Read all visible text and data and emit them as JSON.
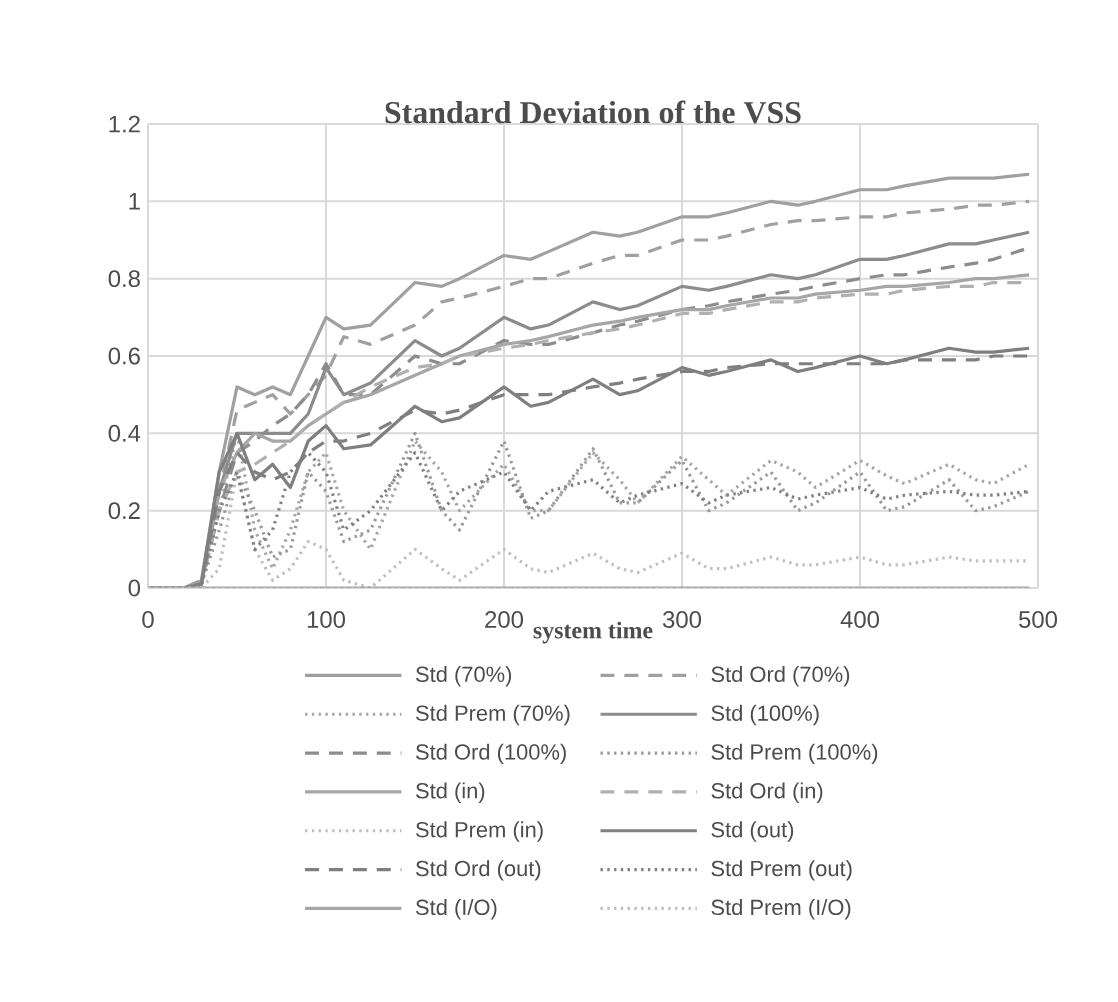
{
  "chart_data": {
    "type": "line",
    "title": "Standard Deviation of the VSS",
    "xlabel": "system time",
    "x": [
      0,
      20,
      30,
      40,
      50,
      60,
      70,
      80,
      90,
      100,
      110,
      125,
      150,
      165,
      175,
      200,
      215,
      225,
      250,
      265,
      275,
      300,
      315,
      325,
      350,
      365,
      375,
      400,
      415,
      425,
      450,
      465,
      475,
      495
    ],
    "xlim": [
      0,
      500
    ],
    "xticks": [
      0,
      100,
      200,
      300,
      400,
      500
    ],
    "ylim": [
      0,
      1.2
    ],
    "yticks": [
      0,
      0.2,
      0.4,
      0.6,
      0.8,
      1,
      1.2
    ],
    "grid": true,
    "legend": "bottom",
    "series": [
      {
        "name": "Std (70%)",
        "color": "#a0a0a0",
        "line_style": "solid",
        "values": [
          0,
          0,
          0.02,
          0.3,
          0.52,
          0.5,
          0.52,
          0.5,
          0.6,
          0.7,
          0.67,
          0.68,
          0.79,
          0.78,
          0.8,
          0.86,
          0.85,
          0.87,
          0.92,
          0.91,
          0.92,
          0.96,
          0.96,
          0.97,
          1.0,
          0.99,
          1.0,
          1.03,
          1.03,
          1.04,
          1.06,
          1.06,
          1.06,
          1.07
        ]
      },
      {
        "name": "Std Ord (70%)",
        "color": "#a0a0a0",
        "line_style": "dashed",
        "values": [
          0,
          0,
          0.01,
          0.25,
          0.46,
          0.48,
          0.5,
          0.45,
          0.5,
          0.55,
          0.65,
          0.63,
          0.68,
          0.74,
          0.75,
          0.78,
          0.8,
          0.8,
          0.84,
          0.86,
          0.86,
          0.9,
          0.9,
          0.91,
          0.94,
          0.95,
          0.95,
          0.96,
          0.96,
          0.97,
          0.98,
          0.99,
          0.99,
          1.0
        ]
      },
      {
        "name": "Std Prem (70%)",
        "color": "#a6a6a6",
        "line_style": "dotted",
        "values": [
          0,
          0,
          0.01,
          0.2,
          0.4,
          0.15,
          0.05,
          0.15,
          0.3,
          0.35,
          0.2,
          0.1,
          0.38,
          0.3,
          0.2,
          0.32,
          0.2,
          0.2,
          0.35,
          0.28,
          0.22,
          0.34,
          0.28,
          0.24,
          0.33,
          0.3,
          0.26,
          0.33,
          0.29,
          0.27,
          0.32,
          0.28,
          0.27,
          0.32
        ]
      },
      {
        "name": "Std (100%)",
        "color": "#8c8c8c",
        "line_style": "solid",
        "values": [
          0,
          0,
          0.01,
          0.25,
          0.4,
          0.4,
          0.4,
          0.4,
          0.45,
          0.57,
          0.5,
          0.53,
          0.64,
          0.6,
          0.62,
          0.7,
          0.67,
          0.68,
          0.74,
          0.72,
          0.73,
          0.78,
          0.77,
          0.78,
          0.81,
          0.8,
          0.81,
          0.85,
          0.85,
          0.86,
          0.89,
          0.89,
          0.9,
          0.92
        ]
      },
      {
        "name": "Std Ord (100%)",
        "color": "#8c8c8c",
        "line_style": "dashed",
        "values": [
          0,
          0,
          0.01,
          0.2,
          0.35,
          0.38,
          0.42,
          0.45,
          0.5,
          0.58,
          0.5,
          0.5,
          0.6,
          0.58,
          0.58,
          0.64,
          0.63,
          0.63,
          0.66,
          0.68,
          0.69,
          0.72,
          0.73,
          0.74,
          0.76,
          0.77,
          0.78,
          0.8,
          0.81,
          0.81,
          0.83,
          0.84,
          0.85,
          0.88
        ]
      },
      {
        "name": "Std Prem (100%)",
        "color": "#999999",
        "line_style": "dotted",
        "values": [
          0,
          0,
          0.01,
          0.15,
          0.3,
          0.2,
          0.08,
          0.1,
          0.3,
          0.25,
          0.12,
          0.15,
          0.4,
          0.2,
          0.15,
          0.38,
          0.18,
          0.2,
          0.36,
          0.22,
          0.22,
          0.33,
          0.2,
          0.22,
          0.3,
          0.2,
          0.22,
          0.3,
          0.2,
          0.21,
          0.28,
          0.2,
          0.21,
          0.25
        ]
      },
      {
        "name": "Std (in)",
        "color": "#a6a6a6",
        "line_style": "solid",
        "values": [
          0,
          0,
          0.01,
          0.25,
          0.35,
          0.4,
          0.38,
          0.38,
          0.42,
          0.45,
          0.48,
          0.5,
          0.55,
          0.58,
          0.6,
          0.63,
          0.64,
          0.65,
          0.68,
          0.69,
          0.7,
          0.72,
          0.72,
          0.73,
          0.75,
          0.75,
          0.76,
          0.77,
          0.78,
          0.78,
          0.79,
          0.8,
          0.8,
          0.81
        ]
      },
      {
        "name": "Std Ord (in)",
        "color": "#b0b0b0",
        "line_style": "dashed",
        "values": [
          0,
          0,
          0.01,
          0.2,
          0.3,
          0.32,
          0.35,
          0.38,
          0.42,
          0.45,
          0.48,
          0.52,
          0.57,
          0.58,
          0.6,
          0.62,
          0.63,
          0.64,
          0.66,
          0.67,
          0.68,
          0.71,
          0.71,
          0.72,
          0.74,
          0.74,
          0.75,
          0.76,
          0.76,
          0.77,
          0.78,
          0.78,
          0.79,
          0.79
        ]
      },
      {
        "name": "Std Prem (in)",
        "color": "#bfbfbf",
        "line_style": "dotted",
        "values": [
          0,
          0,
          0,
          0.05,
          0.3,
          0.1,
          0.02,
          0.05,
          0.12,
          0.1,
          0.02,
          0.0,
          0.1,
          0.05,
          0.02,
          0.1,
          0.05,
          0.04,
          0.09,
          0.05,
          0.04,
          0.09,
          0.05,
          0.05,
          0.08,
          0.06,
          0.06,
          0.08,
          0.06,
          0.06,
          0.08,
          0.07,
          0.07,
          0.07
        ]
      },
      {
        "name": "Std (out)",
        "color": "#7f7f7f",
        "line_style": "solid",
        "values": [
          0,
          0,
          0.01,
          0.3,
          0.4,
          0.28,
          0.32,
          0.26,
          0.38,
          0.42,
          0.36,
          0.37,
          0.47,
          0.43,
          0.44,
          0.52,
          0.47,
          0.48,
          0.54,
          0.5,
          0.51,
          0.57,
          0.55,
          0.56,
          0.59,
          0.56,
          0.57,
          0.6,
          0.58,
          0.59,
          0.62,
          0.61,
          0.61,
          0.62
        ]
      },
      {
        "name": "Std Ord (out)",
        "color": "#7f7f7f",
        "line_style": "dashed",
        "values": [
          0,
          0,
          0.01,
          0.25,
          0.35,
          0.3,
          0.28,
          0.3,
          0.35,
          0.38,
          0.38,
          0.4,
          0.46,
          0.45,
          0.46,
          0.5,
          0.5,
          0.5,
          0.52,
          0.53,
          0.54,
          0.56,
          0.56,
          0.57,
          0.58,
          0.58,
          0.58,
          0.58,
          0.58,
          0.59,
          0.59,
          0.59,
          0.6,
          0.6
        ]
      },
      {
        "name": "Std Prem (out)",
        "color": "#808080",
        "line_style": "dotted",
        "values": [
          0,
          0,
          0.01,
          0.2,
          0.3,
          0.1,
          0.15,
          0.3,
          0.35,
          0.3,
          0.15,
          0.2,
          0.35,
          0.2,
          0.25,
          0.3,
          0.2,
          0.25,
          0.28,
          0.22,
          0.24,
          0.27,
          0.22,
          0.24,
          0.26,
          0.23,
          0.24,
          0.26,
          0.23,
          0.24,
          0.25,
          0.24,
          0.24,
          0.25
        ]
      },
      {
        "name": "Std (I/O)",
        "color": "#a6a6a6",
        "line_style": "solid",
        "values": [
          0,
          0,
          0,
          0,
          0,
          0,
          0,
          0,
          0,
          0,
          0,
          0,
          0,
          0,
          0,
          0,
          0,
          0,
          0,
          0,
          0,
          0,
          0,
          0,
          0,
          0,
          0,
          0,
          0,
          0,
          0,
          0,
          0,
          0
        ]
      },
      {
        "name": "Std Prem (I/O)",
        "color": "#bfbfbf",
        "line_style": "dotted",
        "values": [
          0,
          0,
          0,
          0,
          0,
          0,
          0,
          0,
          0,
          0,
          0,
          0,
          0,
          0,
          0,
          0,
          0,
          0,
          0,
          0,
          0,
          0,
          0,
          0,
          0,
          0,
          0,
          0,
          0,
          0,
          0,
          0,
          0,
          0
        ]
      }
    ]
  }
}
